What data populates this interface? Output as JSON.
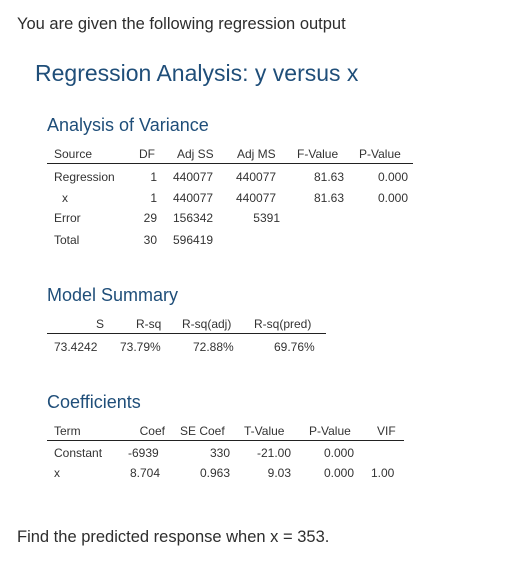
{
  "intro_text": "You are given the following regression output",
  "main_title": "Regression Analysis: y versus x",
  "anova": {
    "title": "Analysis of Variance",
    "headers": [
      "Source",
      "DF",
      "Adj SS",
      "Adj MS",
      "F-Value",
      "P-Value"
    ],
    "rows": [
      [
        "Regression",
        "1",
        "440077",
        "440077",
        "81.63",
        "0.000"
      ],
      [
        "x",
        "1",
        "440077",
        "440077",
        "81.63",
        "0.000"
      ],
      [
        "Error",
        "29",
        "156342",
        "5391",
        "",
        ""
      ],
      [
        "Total",
        "30",
        "596419",
        "",
        "",
        ""
      ]
    ]
  },
  "model_summary": {
    "title": "Model Summary",
    "headers": [
      "S",
      "R-sq",
      "R-sq(adj)",
      "R-sq(pred)"
    ],
    "row": [
      "73.4242",
      "73.79%",
      "72.88%",
      "69.76%"
    ]
  },
  "coefficients": {
    "title": "Coefficients",
    "headers": [
      "Term",
      "Coef",
      "SE Coef",
      "T-Value",
      "P-Value",
      "VIF"
    ],
    "rows": [
      [
        "Constant",
        "-6939",
        "330",
        "-21.00",
        "0.000",
        ""
      ],
      [
        "x",
        "8.704",
        "0.963",
        "9.03",
        "0.000",
        "1.00"
      ]
    ]
  },
  "question_text": "Find the predicted response when x = 353."
}
